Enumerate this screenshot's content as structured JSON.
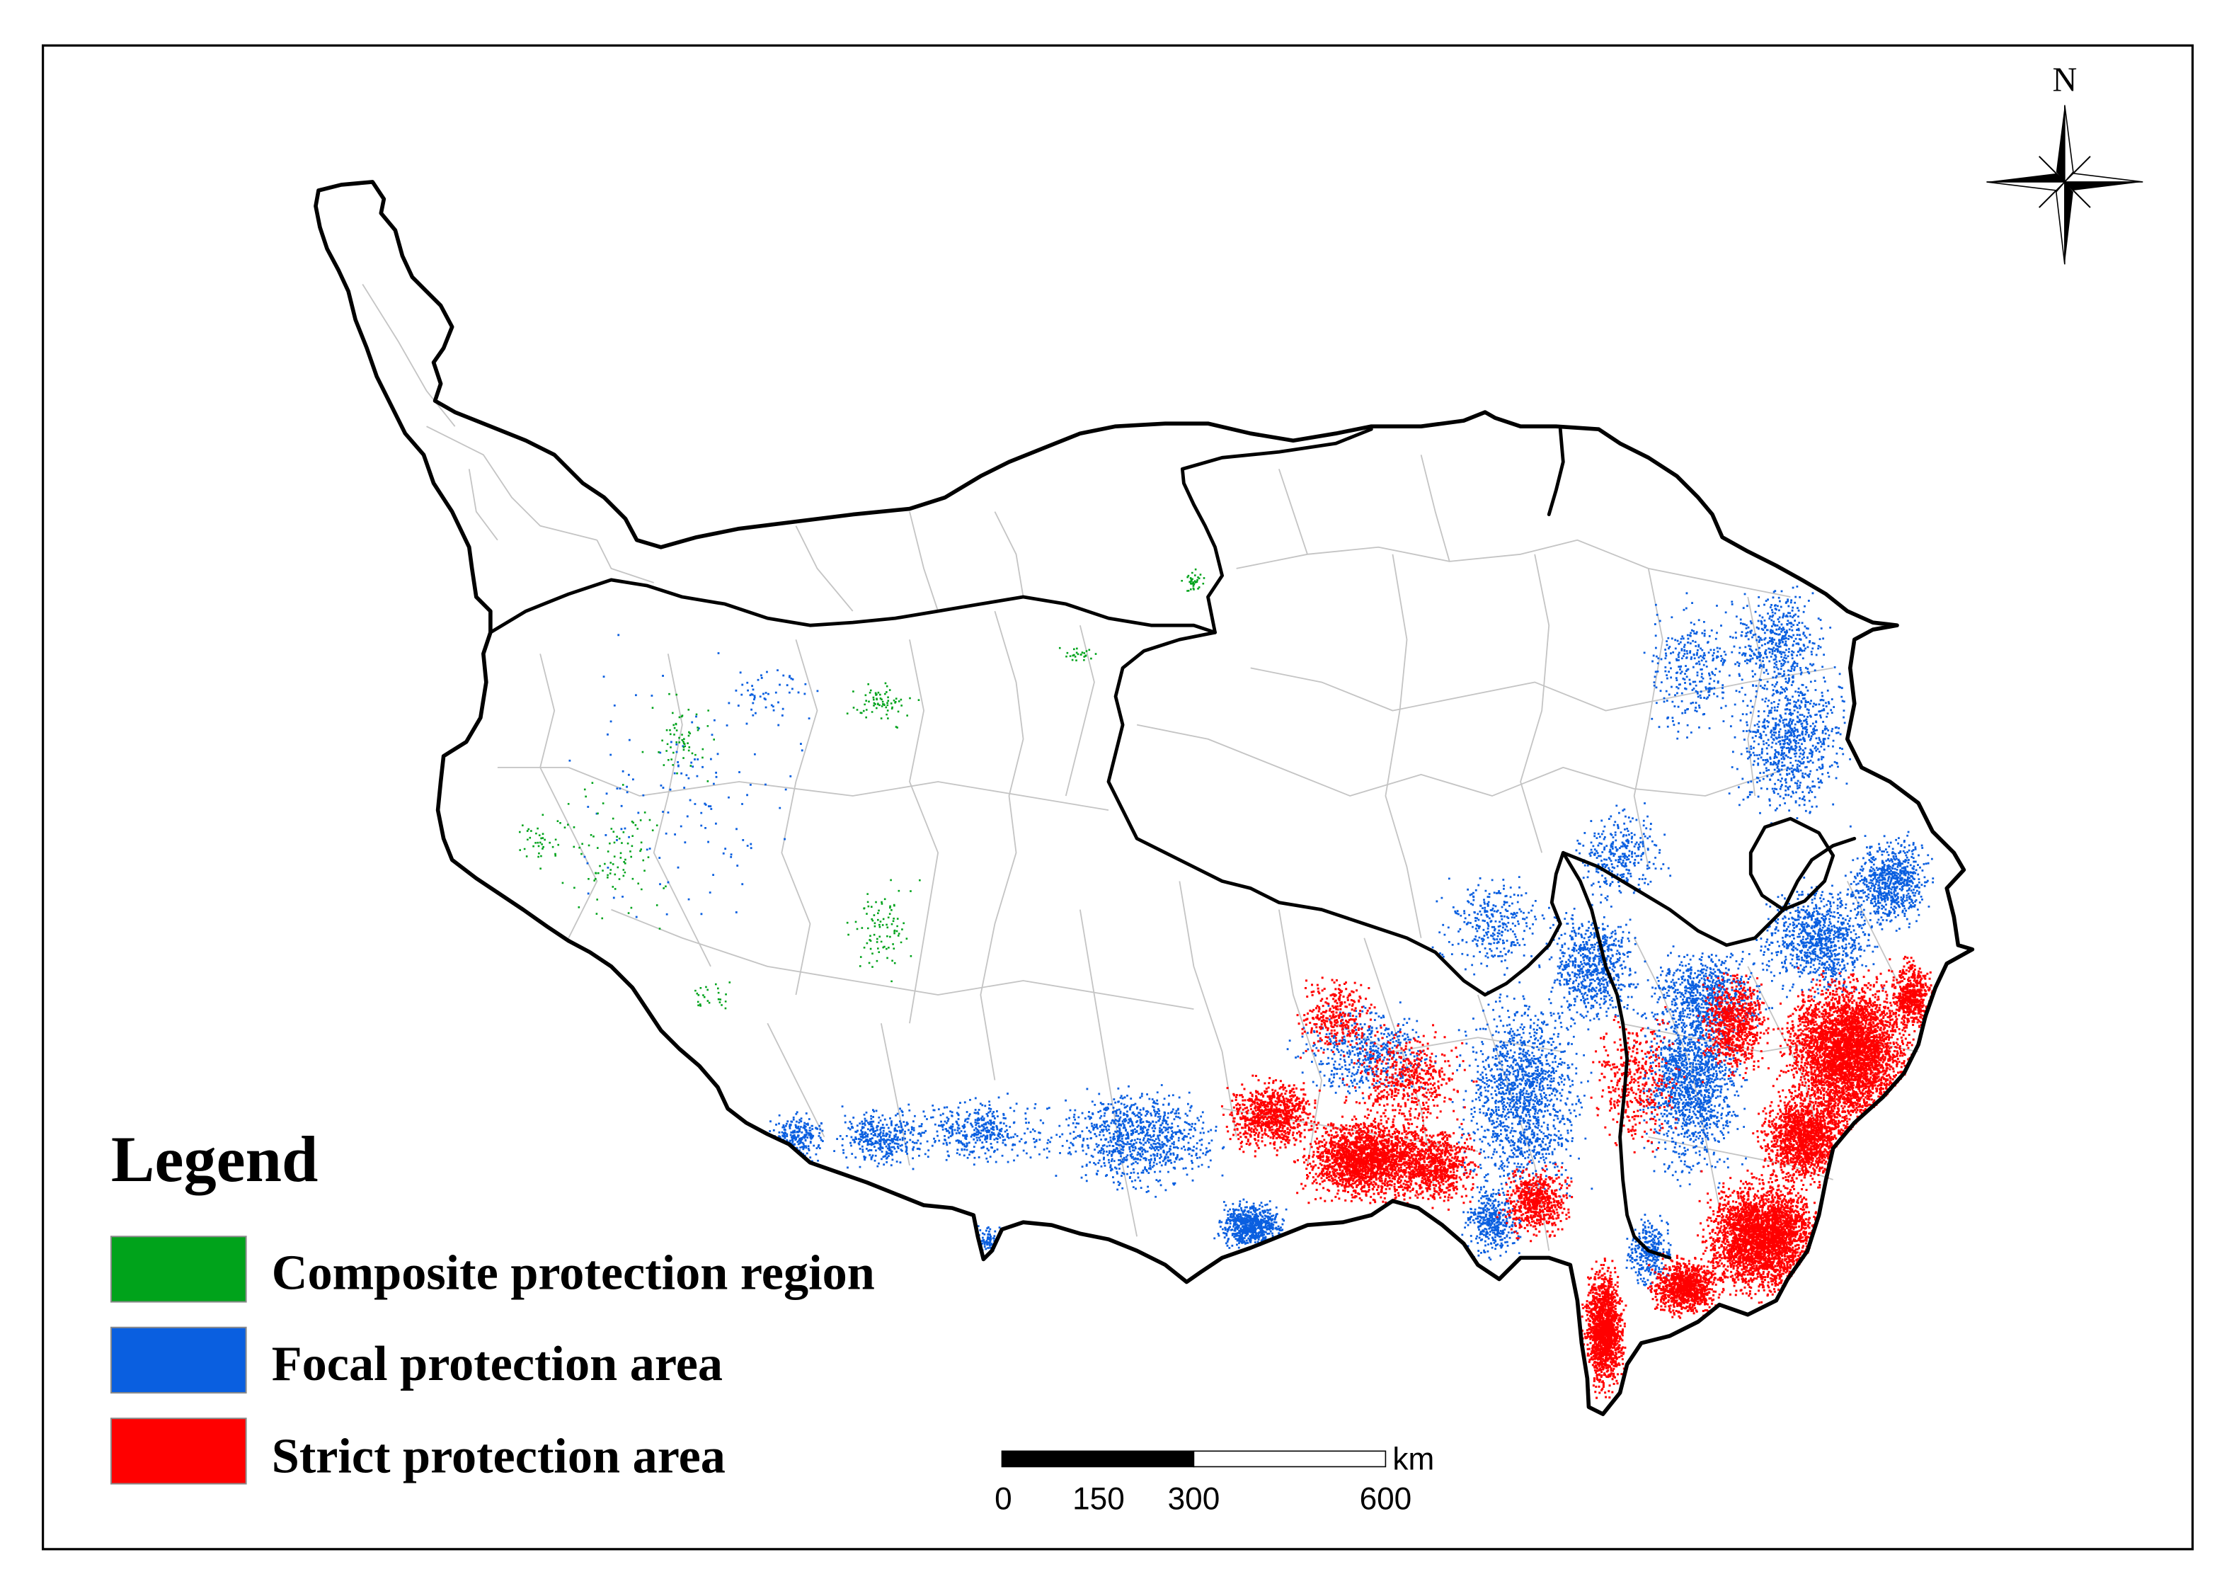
{
  "figure": {
    "north_arrow_label": "N",
    "legend": {
      "title": "Legend",
      "items": [
        {
          "label": "Composite protection region",
          "color": "#00A31B"
        },
        {
          "label": "Focal protection area",
          "color": "#0A5FE0"
        },
        {
          "label": "Strict protection area",
          "color": "#FF0000"
        }
      ]
    },
    "scale_bar": {
      "unit": "km",
      "tick_labels": [
        "0",
        "150",
        "300",
        "600"
      ]
    },
    "map_colors": {
      "province_boundary": "#000000",
      "county_boundary": "#C4C4C4",
      "background": "#FFFFFF"
    }
  }
}
